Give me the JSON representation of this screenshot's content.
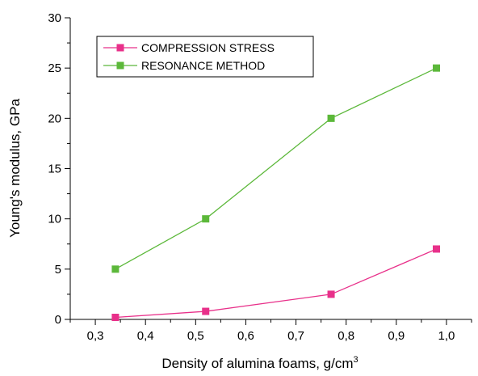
{
  "chart_data": {
    "type": "line",
    "title": "",
    "xlabel": "Density of alumina foams, g/cm",
    "xlabel_superscript": "3",
    "ylabel": "Young's modulus, GPa",
    "xlim": [
      0.25,
      1.05
    ],
    "ylim": [
      0,
      30
    ],
    "x_ticks": [
      "0,3",
      "0,4",
      "0,5",
      "0,6",
      "0,7",
      "0,8",
      "0,9",
      "1,0"
    ],
    "x_tick_values": [
      0.3,
      0.4,
      0.5,
      0.6,
      0.7,
      0.8,
      0.9,
      1.0
    ],
    "y_ticks": [
      "0",
      "5",
      "10",
      "15",
      "20",
      "25",
      "30"
    ],
    "y_tick_values": [
      0,
      5,
      10,
      15,
      20,
      25,
      30
    ],
    "grid": false,
    "legend_position": "top-left",
    "series": [
      {
        "name": "COMPRESSION STRESS",
        "color": "#e8308a",
        "marker": "square",
        "x": [
          0.34,
          0.52,
          0.77,
          0.98
        ],
        "y": [
          0.2,
          0.8,
          2.5,
          7.0
        ]
      },
      {
        "name": "RESONANCE METHOD",
        "color": "#5cb83a",
        "marker": "square",
        "x": [
          0.34,
          0.52,
          0.77,
          0.98
        ],
        "y": [
          5.0,
          10.0,
          20.0,
          25.0
        ]
      }
    ]
  }
}
